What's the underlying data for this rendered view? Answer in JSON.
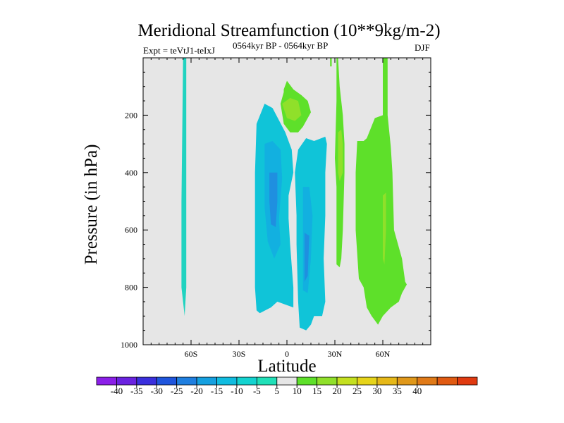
{
  "chart_data": {
    "type": "contour",
    "title": "Meridional Streamfunction (10**9kg/m-2)",
    "left_annotation": "Expt = teVtJ1-teIxJ",
    "center_annotation": "0564kyr BP - 0564kyr BP",
    "right_annotation": "DJF",
    "xlabel": "Latitude",
    "ylabel": "Pressure (in hPa)",
    "xlim": [
      -90,
      90
    ],
    "ylim": [
      1000,
      0
    ],
    "x_ticks": [
      -60,
      -30,
      0,
      30,
      60
    ],
    "x_tick_labels": [
      "60S",
      "30S",
      "0",
      "30N",
      "60N"
    ],
    "y_ticks": [
      200,
      400,
      600,
      800,
      1000
    ],
    "y_tick_labels": [
      "200",
      "400",
      "600",
      "800",
      "1000"
    ],
    "background_color": "#e6e6e6",
    "colorbar": {
      "labels": [
        "-40",
        "-35",
        "-30",
        "-25",
        "-20",
        "-15",
        "-10",
        "-5",
        "5",
        "10",
        "15",
        "20",
        "25",
        "30",
        "35",
        "40"
      ],
      "colors": [
        "#8b1fe8",
        "#6a22e0",
        "#3a2fdd",
        "#1f55dd",
        "#1f7fe0",
        "#15a0e0",
        "#10bce0",
        "#13d3d0",
        "#20e0b8",
        "#e6e6e6",
        "#5ee02a",
        "#90e02a",
        "#c4e020",
        "#e6d41a",
        "#e6b818",
        "#e0981a",
        "#e07a18",
        "#e05a12",
        "#e03a10"
      ]
    },
    "regions": [
      {
        "name": "sh-vertical-streak",
        "level": -5,
        "color": "#20d3c0",
        "points": [
          [
            -65,
            0
          ],
          [
            -63,
            0
          ],
          [
            -63,
            500
          ],
          [
            -63,
            800
          ],
          [
            -64,
            900
          ],
          [
            -66,
            800
          ],
          [
            -66,
            500
          ]
        ]
      },
      {
        "name": "tropical-negative-left",
        "level": -10,
        "color": "#10c4d8",
        "points": [
          [
            -19,
            230
          ],
          [
            -14,
            160
          ],
          [
            -9,
            175
          ],
          [
            -1,
            260
          ],
          [
            3,
            320
          ],
          [
            4,
            400
          ],
          [
            1,
            480
          ],
          [
            1,
            560
          ],
          [
            2,
            650
          ],
          [
            4,
            800
          ],
          [
            4,
            870
          ],
          [
            -1,
            860
          ],
          [
            -6,
            850
          ],
          [
            -10,
            870
          ],
          [
            -17,
            890
          ],
          [
            -19,
            880
          ],
          [
            -20,
            800
          ],
          [
            -20,
            600
          ],
          [
            -20,
            400
          ]
        ]
      },
      {
        "name": "tropical-negative-left-inner",
        "level": -15,
        "color": "#12b0e0",
        "points": [
          [
            -14,
            300
          ],
          [
            -9,
            290
          ],
          [
            -4,
            320
          ],
          [
            -3,
            420
          ],
          [
            -5,
            560
          ],
          [
            -4,
            650
          ],
          [
            -8,
            700
          ],
          [
            -12,
            640
          ],
          [
            -14,
            520
          ]
        ]
      },
      {
        "name": "tropical-negative-left-core",
        "level": -20,
        "color": "#1f8fe0",
        "points": [
          [
            -11,
            400
          ],
          [
            -6,
            400
          ],
          [
            -6,
            500
          ],
          [
            -7,
            590
          ],
          [
            -10,
            580
          ],
          [
            -11,
            500
          ]
        ]
      },
      {
        "name": "tropical-negative-right",
        "level": -10,
        "color": "#10c4d8",
        "points": [
          [
            7,
            320
          ],
          [
            12,
            280
          ],
          [
            17,
            290
          ],
          [
            24,
            275
          ],
          [
            25,
            300
          ],
          [
            24,
            400
          ],
          [
            24,
            550
          ],
          [
            23,
            700
          ],
          [
            24,
            850
          ],
          [
            22,
            900
          ],
          [
            17,
            900
          ],
          [
            15,
            930
          ],
          [
            12,
            950
          ],
          [
            8,
            940
          ],
          [
            7,
            850
          ],
          [
            6,
            650
          ],
          [
            6,
            550
          ],
          [
            5,
            400
          ]
        ]
      },
      {
        "name": "tropical-negative-right-inner",
        "level": -15,
        "color": "#12b0e0",
        "points": [
          [
            10,
            450
          ],
          [
            14,
            450
          ],
          [
            16,
            550
          ],
          [
            15,
            700
          ],
          [
            13,
            820
          ],
          [
            10,
            810
          ],
          [
            10,
            700
          ],
          [
            10,
            600
          ]
        ]
      },
      {
        "name": "tropical-negative-right-core",
        "level": -20,
        "color": "#1f8fe0",
        "points": [
          [
            11,
            610
          ],
          [
            14,
            620
          ],
          [
            13,
            760
          ],
          [
            11,
            780
          ]
        ]
      },
      {
        "name": "upper-tropical-positive",
        "level": 5,
        "color": "#5ee02a",
        "points": [
          [
            -2,
            110
          ],
          [
            0,
            80
          ],
          [
            4,
            110
          ],
          [
            9,
            130
          ],
          [
            13,
            150
          ],
          [
            15,
            190
          ],
          [
            13,
            210
          ],
          [
            10,
            240
          ],
          [
            7,
            260
          ],
          [
            2,
            260
          ],
          [
            -2,
            230
          ],
          [
            -4,
            160
          ],
          [
            -2,
            120
          ]
        ]
      },
      {
        "name": "upper-tropical-positive-core",
        "level": 10,
        "color": "#90e02a",
        "points": [
          [
            -3,
            160
          ],
          [
            2,
            140
          ],
          [
            7,
            150
          ],
          [
            9,
            200
          ],
          [
            5,
            220
          ],
          [
            0,
            210
          ]
        ]
      },
      {
        "name": "nh-thin-streak",
        "level": 5,
        "color": "#5ee02a",
        "points": [
          [
            27,
            0
          ],
          [
            28,
            0
          ],
          [
            28,
            30
          ],
          [
            27,
            30
          ]
        ]
      },
      {
        "name": "nh-subtropical-band",
        "level": 5,
        "color": "#5ee02a",
        "points": [
          [
            31,
            0
          ],
          [
            32,
            0
          ],
          [
            33,
            100
          ],
          [
            35,
            200
          ],
          [
            36,
            300
          ],
          [
            36,
            400
          ],
          [
            35,
            600
          ],
          [
            34,
            700
          ],
          [
            33,
            730
          ],
          [
            31,
            720
          ],
          [
            31,
            600
          ],
          [
            31,
            450
          ],
          [
            30,
            350
          ],
          [
            31,
            150
          ]
        ]
      },
      {
        "name": "nh-subtropical-core",
        "level": 10,
        "color": "#90e02a",
        "points": [
          [
            32,
            260
          ],
          [
            34,
            250
          ],
          [
            35,
            300
          ],
          [
            35,
            400
          ],
          [
            33,
            430
          ],
          [
            32,
            400
          ]
        ]
      },
      {
        "name": "nh-midlatitude-band",
        "level": 5,
        "color": "#5ee02a",
        "points": [
          [
            44,
            290
          ],
          [
            48,
            290
          ],
          [
            50,
            280
          ],
          [
            55,
            210
          ],
          [
            60,
            200
          ],
          [
            60,
            0
          ],
          [
            63,
            0
          ],
          [
            63,
            200
          ],
          [
            65,
            310
          ],
          [
            66,
            400
          ],
          [
            67,
            600
          ],
          [
            72,
            700
          ],
          [
            74,
            780
          ],
          [
            75,
            790
          ],
          [
            74,
            800
          ],
          [
            72,
            820
          ],
          [
            70,
            850
          ],
          [
            65,
            870
          ],
          [
            60,
            900
          ],
          [
            57,
            930
          ],
          [
            53,
            900
          ],
          [
            50,
            870
          ],
          [
            48,
            800
          ],
          [
            45,
            770
          ],
          [
            43,
            600
          ],
          [
            43,
            400
          ]
        ]
      },
      {
        "name": "nh-midlatitude-core",
        "level": 10,
        "color": "#90e02a",
        "points": [
          [
            60,
            480
          ],
          [
            62,
            470
          ],
          [
            62,
            600
          ],
          [
            61,
            720
          ],
          [
            60,
            700
          ]
        ]
      }
    ]
  }
}
